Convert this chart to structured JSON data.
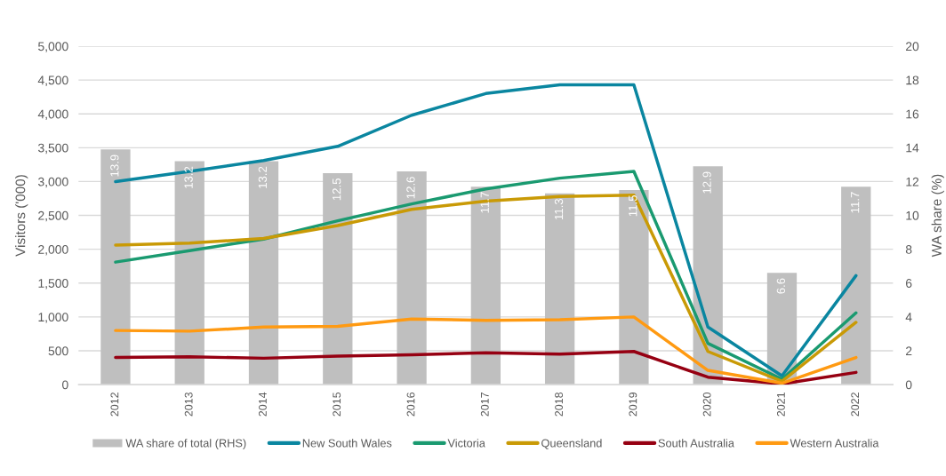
{
  "chart_data": {
    "type": "line",
    "categories": [
      "2012",
      "2013",
      "2014",
      "2015",
      "2016",
      "2017",
      "2018",
      "2019",
      "2020",
      "2021",
      "2022"
    ],
    "series": [
      {
        "name": "WA share of total (RHS)",
        "type": "bar",
        "axis": "y2",
        "color": "#bfbfbf",
        "values": [
          13.9,
          13.2,
          13.2,
          12.5,
          12.6,
          11.7,
          11.3,
          11.5,
          12.9,
          6.6,
          11.7
        ],
        "value_labels": [
          "13.9",
          "13.2",
          "13.2",
          "12.5",
          "12.6",
          "11.7",
          "11.3",
          "11.5",
          "12.9",
          "6.6",
          "11.7"
        ]
      },
      {
        "name": "New South Wales",
        "color": "#0a86a0",
        "values": [
          3000,
          3150,
          3310,
          3520,
          3980,
          4300,
          4430,
          4430,
          850,
          130,
          1610
        ]
      },
      {
        "name": "Victoria",
        "color": "#1a9a70",
        "values": [
          1810,
          1980,
          2150,
          2420,
          2670,
          2890,
          3050,
          3150,
          610,
          80,
          1060
        ]
      },
      {
        "name": "Queensland",
        "color": "#c99a06",
        "values": [
          2060,
          2090,
          2160,
          2350,
          2590,
          2710,
          2780,
          2800,
          490,
          50,
          920
        ]
      },
      {
        "name": "South Australia",
        "color": "#960012",
        "values": [
          400,
          410,
          390,
          420,
          440,
          470,
          450,
          490,
          110,
          10,
          180
        ]
      },
      {
        "name": "Western Australia",
        "color": "#ff9a12",
        "values": [
          800,
          790,
          850,
          860,
          970,
          950,
          960,
          1000,
          210,
          20,
          400
        ]
      }
    ],
    "ylabel": "Visitors ('000)",
    "y2label": "WA share (%)",
    "ylim": [
      0,
      5000
    ],
    "yticks": [
      0,
      500,
      {
        "value": 1000,
        "label": "1,000"
      },
      {
        "value": 1500,
        "label": "1,500"
      },
      {
        "value": 2000,
        "label": "2,000"
      },
      {
        "value": 2500,
        "label": "2,500"
      },
      {
        "value": 3000,
        "label": "3,000"
      },
      {
        "value": 3500,
        "label": "3,500"
      },
      {
        "value": 4000,
        "label": "4,000"
      },
      {
        "value": 4500,
        "label": "4,500"
      },
      {
        "value": 5000,
        "label": "5,000"
      }
    ],
    "y2lim": [
      0,
      20
    ],
    "y2ticks": [
      0,
      2,
      4,
      6,
      8,
      10,
      12,
      14,
      16,
      18,
      20
    ],
    "grid": "y",
    "legend": "bottom",
    "line_style": "solid"
  }
}
